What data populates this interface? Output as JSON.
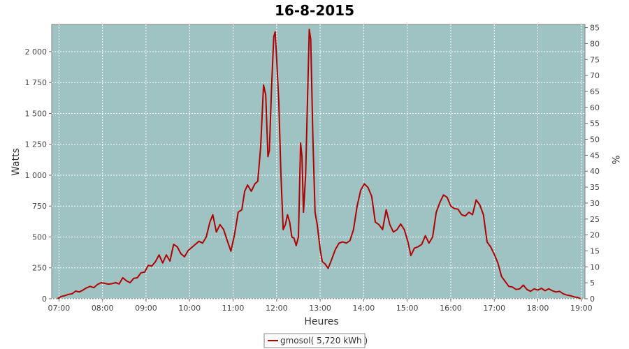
{
  "chart_data": {
    "type": "line",
    "title": "16-8-2015",
    "xlabel": "Heures",
    "ylabel": "Watts",
    "y2label": "%",
    "xlim": [
      "06:50",
      "19:05"
    ],
    "ylim": [
      0,
      2220
    ],
    "y2lim": [
      0,
      86
    ],
    "x_ticks": [
      "07:00",
      "08:00",
      "09:00",
      "10:00",
      "11:00",
      "12:00",
      "13:00",
      "14:00",
      "15:00",
      "16:00",
      "17:00",
      "18:00",
      "19:00"
    ],
    "y_ticks": [
      "0",
      "250",
      "500",
      "750",
      "1 000",
      "1 250",
      "1 500",
      "1 750",
      "2 000"
    ],
    "y2_ticks": [
      "0",
      "5",
      "10",
      "15",
      "20",
      "25",
      "30",
      "35",
      "40",
      "45",
      "50",
      "55",
      "60",
      "65",
      "70",
      "75",
      "80",
      "85"
    ],
    "grid": true,
    "plot_background": "#9fc3c3",
    "legend_position": "bottom-center",
    "series": [
      {
        "name": "gmosol( 5,720 kWh )",
        "color": "#b00000",
        "points": [
          [
            "06:58",
            0
          ],
          [
            "07:03",
            18
          ],
          [
            "07:08",
            25
          ],
          [
            "07:13",
            35
          ],
          [
            "07:18",
            40
          ],
          [
            "07:23",
            62
          ],
          [
            "07:28",
            55
          ],
          [
            "07:33",
            70
          ],
          [
            "07:38",
            88
          ],
          [
            "07:43",
            100
          ],
          [
            "07:48",
            90
          ],
          [
            "07:53",
            115
          ],
          [
            "07:58",
            130
          ],
          [
            "08:03",
            125
          ],
          [
            "08:08",
            118
          ],
          [
            "08:13",
            122
          ],
          [
            "08:18",
            130
          ],
          [
            "08:23",
            120
          ],
          [
            "08:28",
            170
          ],
          [
            "08:33",
            145
          ],
          [
            "08:38",
            130
          ],
          [
            "08:43",
            165
          ],
          [
            "08:48",
            170
          ],
          [
            "08:53",
            210
          ],
          [
            "08:58",
            215
          ],
          [
            "09:03",
            270
          ],
          [
            "09:08",
            265
          ],
          [
            "09:13",
            300
          ],
          [
            "09:18",
            355
          ],
          [
            "09:23",
            290
          ],
          [
            "09:28",
            355
          ],
          [
            "09:33",
            305
          ],
          [
            "09:38",
            440
          ],
          [
            "09:43",
            420
          ],
          [
            "09:48",
            365
          ],
          [
            "09:53",
            340
          ],
          [
            "09:58",
            390
          ],
          [
            "10:03",
            415
          ],
          [
            "10:08",
            440
          ],
          [
            "10:13",
            465
          ],
          [
            "10:18",
            450
          ],
          [
            "10:23",
            500
          ],
          [
            "10:28",
            620
          ],
          [
            "10:32",
            680
          ],
          [
            "10:37",
            540
          ],
          [
            "10:42",
            600
          ],
          [
            "10:47",
            560
          ],
          [
            "10:52",
            470
          ],
          [
            "10:57",
            385
          ],
          [
            "11:02",
            520
          ],
          [
            "11:07",
            700
          ],
          [
            "11:12",
            720
          ],
          [
            "11:16",
            870
          ],
          [
            "11:20",
            920
          ],
          [
            "11:25",
            870
          ],
          [
            "11:30",
            930
          ],
          [
            "11:34",
            950
          ],
          [
            "11:38",
            1230
          ],
          [
            "11:42",
            1730
          ],
          [
            "11:45",
            1650
          ],
          [
            "11:48",
            1150
          ],
          [
            "11:50",
            1200
          ],
          [
            "11:53",
            1700
          ],
          [
            "11:56",
            2120
          ],
          [
            "11:58",
            2160
          ],
          [
            "12:00",
            1950
          ],
          [
            "12:03",
            1600
          ],
          [
            "12:06",
            1000
          ],
          [
            "12:09",
            560
          ],
          [
            "12:12",
            600
          ],
          [
            "12:15",
            680
          ],
          [
            "12:18",
            620
          ],
          [
            "12:21",
            500
          ],
          [
            "12:24",
            490
          ],
          [
            "12:27",
            430
          ],
          [
            "12:30",
            500
          ],
          [
            "12:33",
            1260
          ],
          [
            "12:35",
            1150
          ],
          [
            "12:37",
            700
          ],
          [
            "12:40",
            1000
          ],
          [
            "12:43",
            1700
          ],
          [
            "12:45",
            2180
          ],
          [
            "12:47",
            2100
          ],
          [
            "12:50",
            1300
          ],
          [
            "12:53",
            700
          ],
          [
            "12:56",
            600
          ],
          [
            "13:00",
            400
          ],
          [
            "13:03",
            300
          ],
          [
            "13:07",
            280
          ],
          [
            "13:11",
            245
          ],
          [
            "13:16",
            320
          ],
          [
            "13:21",
            400
          ],
          [
            "13:26",
            450
          ],
          [
            "13:31",
            460
          ],
          [
            "13:36",
            450
          ],
          [
            "13:41",
            470
          ],
          [
            "13:46",
            560
          ],
          [
            "13:51",
            750
          ],
          [
            "13:56",
            880
          ],
          [
            "14:01",
            930
          ],
          [
            "14:06",
            900
          ],
          [
            "14:11",
            830
          ],
          [
            "14:16",
            620
          ],
          [
            "14:21",
            600
          ],
          [
            "14:26",
            560
          ],
          [
            "14:31",
            720
          ],
          [
            "14:36",
            600
          ],
          [
            "14:41",
            540
          ],
          [
            "14:46",
            560
          ],
          [
            "14:51",
            605
          ],
          [
            "14:56",
            560
          ],
          [
            "15:01",
            460
          ],
          [
            "15:05",
            350
          ],
          [
            "15:10",
            410
          ],
          [
            "15:15",
            420
          ],
          [
            "15:20",
            440
          ],
          [
            "15:25",
            510
          ],
          [
            "15:30",
            450
          ],
          [
            "15:35",
            500
          ],
          [
            "15:40",
            700
          ],
          [
            "15:45",
            780
          ],
          [
            "15:50",
            840
          ],
          [
            "15:55",
            820
          ],
          [
            "16:00",
            750
          ],
          [
            "16:05",
            730
          ],
          [
            "16:10",
            725
          ],
          [
            "16:15",
            680
          ],
          [
            "16:20",
            670
          ],
          [
            "16:25",
            700
          ],
          [
            "16:30",
            680
          ],
          [
            "16:35",
            800
          ],
          [
            "16:40",
            760
          ],
          [
            "16:45",
            680
          ],
          [
            "16:50",
            460
          ],
          [
            "16:55",
            420
          ],
          [
            "17:00",
            360
          ],
          [
            "17:05",
            290
          ],
          [
            "17:10",
            180
          ],
          [
            "17:15",
            140
          ],
          [
            "17:20",
            100
          ],
          [
            "17:25",
            95
          ],
          [
            "17:30",
            75
          ],
          [
            "17:35",
            80
          ],
          [
            "17:40",
            110
          ],
          [
            "17:45",
            75
          ],
          [
            "17:50",
            60
          ],
          [
            "17:55",
            80
          ],
          [
            "18:00",
            70
          ],
          [
            "18:05",
            85
          ],
          [
            "18:10",
            65
          ],
          [
            "18:15",
            80
          ],
          [
            "18:20",
            65
          ],
          [
            "18:25",
            55
          ],
          [
            "18:30",
            60
          ],
          [
            "18:35",
            40
          ],
          [
            "18:40",
            30
          ],
          [
            "18:45",
            25
          ],
          [
            "18:50",
            15
          ],
          [
            "18:55",
            10
          ],
          [
            "18:59",
            0
          ]
        ]
      }
    ]
  }
}
